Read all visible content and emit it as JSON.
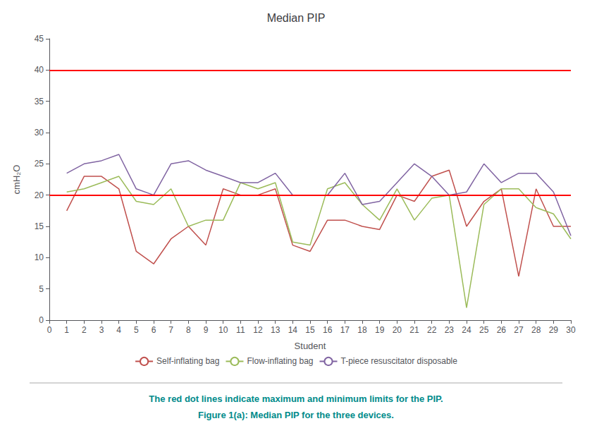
{
  "chart_data": {
    "type": "line",
    "title": "Median PIP",
    "x_label": "Student",
    "y_label": "cmH₂O",
    "x": [
      1,
      2,
      3,
      4,
      5,
      6,
      7,
      8,
      9,
      10,
      11,
      12,
      13,
      14,
      15,
      16,
      17,
      18,
      19,
      20,
      21,
      22,
      23,
      24,
      25,
      26,
      27,
      28,
      29,
      30
    ],
    "series": [
      {
        "name": "Self-inflating bag",
        "color": "#C0504D",
        "values": [
          17.5,
          23,
          23,
          21,
          11,
          9,
          13,
          15,
          12,
          21,
          20,
          20,
          21,
          12,
          11,
          16,
          16,
          15,
          14.5,
          20,
          19,
          23,
          24,
          15,
          19,
          21,
          7,
          21,
          15,
          15
        ]
      },
      {
        "name": "Flow-inflating bag",
        "color": "#9BBB59",
        "values": [
          20.5,
          21,
          22,
          23,
          19,
          18.5,
          21,
          15,
          16,
          16,
          22,
          21,
          22,
          12.5,
          12,
          21,
          22,
          18.5,
          16,
          21,
          16,
          19.5,
          20,
          2,
          18.5,
          21,
          21,
          18,
          17,
          13
        ]
      },
      {
        "name": "T-piece resuscitator disposable",
        "color": "#8064A2",
        "values": [
          23.5,
          25,
          25.5,
          26.5,
          21,
          20,
          25,
          25.5,
          24,
          23,
          22,
          22,
          23.5,
          20,
          20,
          20,
          23.5,
          18.5,
          19,
          22,
          25,
          23,
          20,
          20.5,
          25,
          22,
          23.5,
          23.5,
          20.5,
          13.5
        ]
      }
    ],
    "xlim": [
      0,
      30
    ],
    "xticks": [
      0,
      1,
      2,
      3,
      4,
      5,
      6,
      7,
      8,
      9,
      10,
      11,
      12,
      13,
      14,
      15,
      16,
      17,
      18,
      19,
      20,
      21,
      22,
      23,
      24,
      25,
      26,
      27,
      28,
      29,
      30
    ],
    "ylim": [
      0,
      45
    ],
    "yticks": [
      0,
      5,
      10,
      15,
      20,
      25,
      30,
      35,
      40,
      45
    ],
    "hlines": [
      40,
      20
    ],
    "hline_color": "#FF0000",
    "annotations": [
      {
        "text": "The red dot lines indicate maximum and minimum limits for the PIP.",
        "color": "#008B8B"
      },
      {
        "text": "Figure 1(a): Median PIP for the three devices.",
        "color": "#008B8B"
      }
    ],
    "marker": "none",
    "legend": "bottom",
    "grid": false
  }
}
